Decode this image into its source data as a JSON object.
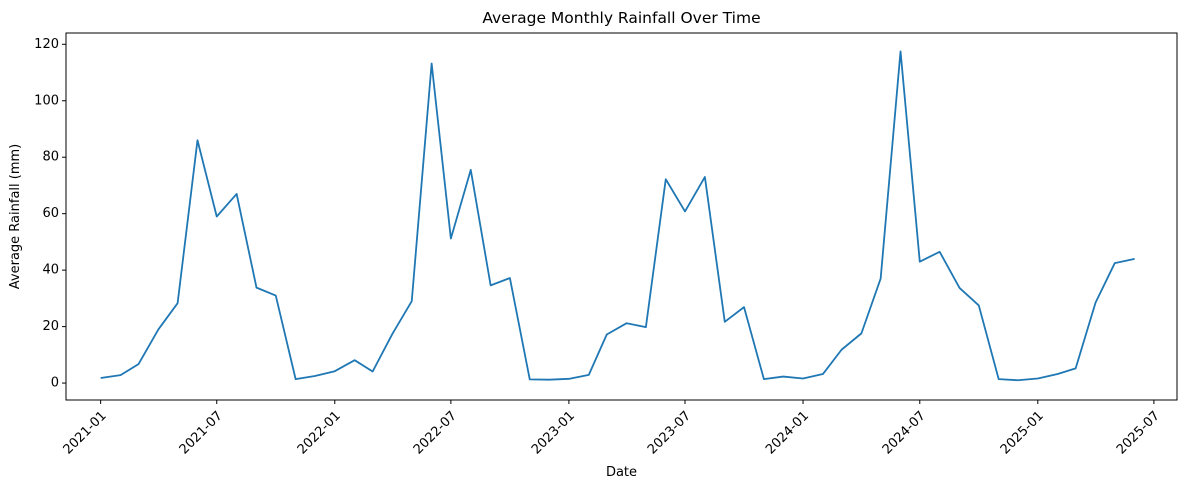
{
  "chart_data": {
    "type": "line",
    "title": "Average Monthly Rainfall Over Time",
    "xlabel": "Date",
    "ylabel": "Average Rainfall (mm)",
    "xlim": [
      "2020-11-08",
      "2025-08-06"
    ],
    "ylim": [
      -6,
      124
    ],
    "grid": false,
    "x_ticks": [
      "2021-01",
      "2021-07",
      "2022-01",
      "2022-07",
      "2023-01",
      "2023-07",
      "2024-01",
      "2024-07",
      "2025-01",
      "2025-07"
    ],
    "y_ticks": [
      0,
      20,
      40,
      60,
      80,
      100,
      120
    ],
    "series": [
      {
        "color": "#1f77b4",
        "x": [
          "2021-01",
          "2021-02",
          "2021-03",
          "2021-04",
          "2021-05",
          "2021-06",
          "2021-07",
          "2021-08",
          "2021-09",
          "2021-10",
          "2021-11",
          "2021-12",
          "2022-01",
          "2022-02",
          "2022-03",
          "2022-04",
          "2022-05",
          "2022-06",
          "2022-07",
          "2022-08",
          "2022-09",
          "2022-10",
          "2022-11",
          "2022-12",
          "2023-01",
          "2023-02",
          "2023-03",
          "2023-04",
          "2023-05",
          "2023-06",
          "2023-07",
          "2023-08",
          "2023-09",
          "2023-10",
          "2023-11",
          "2023-12",
          "2024-01",
          "2024-02",
          "2024-03",
          "2024-04",
          "2024-05",
          "2024-06",
          "2024-07",
          "2024-08",
          "2024-09",
          "2024-10",
          "2024-11",
          "2024-12",
          "2025-01",
          "2025-02",
          "2025-03",
          "2025-04",
          "2025-05",
          "2025-06"
        ],
        "y": [
          1.8,
          2.8,
          6.7,
          19.0,
          28.3,
          86.0,
          59.0,
          67.0,
          33.8,
          31.0,
          1.4,
          2.5,
          4.2,
          8.1,
          4.1,
          17.5,
          29.0,
          113.2,
          51.2,
          75.5,
          34.6,
          37.2,
          1.3,
          1.2,
          1.5,
          2.9,
          17.2,
          21.2,
          19.8,
          72.2,
          60.8,
          73.0,
          21.7,
          26.9,
          1.4,
          2.3,
          1.6,
          3.2,
          11.8,
          17.6,
          37.0,
          117.5,
          43.0,
          46.5,
          33.7,
          27.5,
          1.4,
          1.0,
          1.6,
          3.2,
          5.2,
          28.5,
          42.5,
          44.0
        ]
      }
    ]
  }
}
